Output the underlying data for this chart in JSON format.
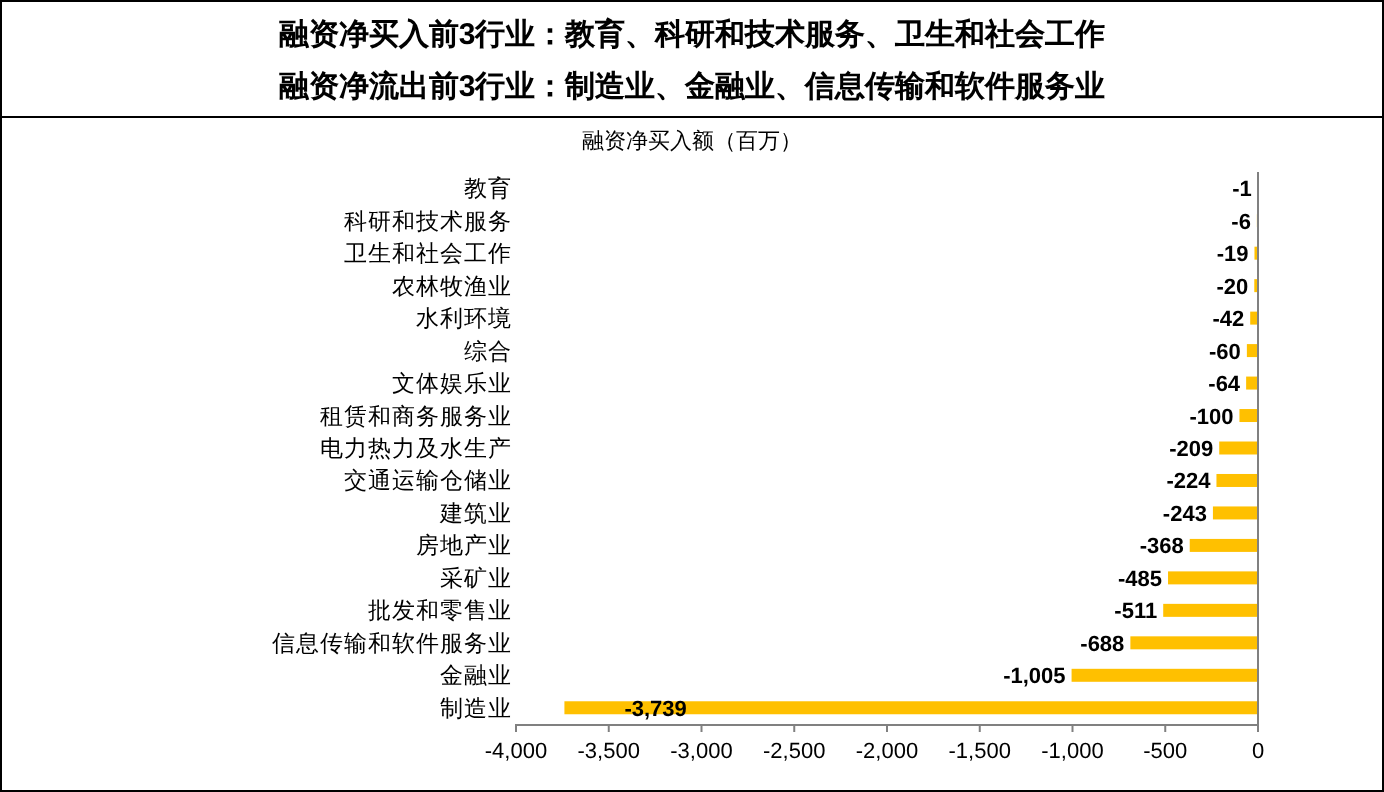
{
  "chart_data": {
    "type": "bar",
    "orientation": "horizontal",
    "title": "融资净买入前3行业：教育、科研和技术服务、卫生和社会工作",
    "subtitle": "融资净流出前3行业：制造业、金融业、信息传输和软件服务业",
    "annotations": [
      "融资净买入额（百万）"
    ],
    "categories": [
      "教育",
      "科研和技术服务",
      "卫生和社会工作",
      "农林牧渔业",
      "水利环境",
      "综合",
      "文体娱乐业",
      "租赁和商务服务业",
      "电力热力及水生产",
      "交通运输仓储业",
      "建筑业",
      "房地产业",
      "采矿业",
      "批发和零售业",
      "信息传输和软件服务业",
      "金融业",
      "制造业"
    ],
    "values": [
      -1,
      -6,
      -19,
      -20,
      -42,
      -60,
      -64,
      -100,
      -209,
      -224,
      -243,
      -368,
      -485,
      -511,
      -688,
      -1005,
      -3739
    ],
    "value_labels": [
      "-1",
      "-6",
      "-19",
      "-20",
      "-42",
      "-60",
      "-64",
      "-100",
      "-209",
      "-224",
      "-243",
      "-368",
      "-485",
      "-511",
      "-688",
      "-1,005",
      "-3,739"
    ],
    "color": "#ffc000",
    "xlim": [
      -4000,
      0
    ],
    "xticks": [
      {
        "value": -4000,
        "label": "-4,000"
      },
      {
        "value": -3500,
        "label": "-3,500"
      },
      {
        "value": -3000,
        "label": "-3,000"
      },
      {
        "value": -2500,
        "label": "-2,500"
      },
      {
        "value": -2000,
        "label": "-2,000"
      },
      {
        "value": -1500,
        "label": "-1,500"
      },
      {
        "value": -1000,
        "label": "-1,000"
      },
      {
        "value": -500,
        "label": "-500"
      },
      0
    ],
    "grid": false
  }
}
